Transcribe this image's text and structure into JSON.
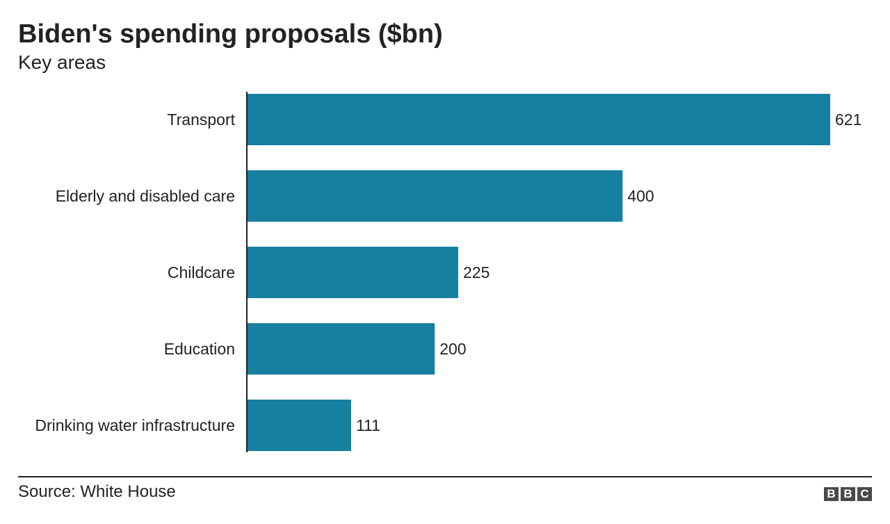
{
  "header": {
    "title": "Biden's spending proposals ($bn)",
    "subtitle": "Key areas"
  },
  "footer": {
    "source": "Source: White House",
    "logo_letters": [
      "B",
      "B",
      "C"
    ]
  },
  "colors": {
    "bar": "#1780a1",
    "text": "#222222",
    "axis": "#222222"
  },
  "chart_data": {
    "type": "bar",
    "orientation": "horizontal",
    "title": "Biden's spending proposals ($bn)",
    "subtitle": "Key areas",
    "categories": [
      "Transport",
      "Elderly and disabled care",
      "Childcare",
      "Education",
      "Drinking water infrastructure"
    ],
    "values": [
      621,
      400,
      225,
      200,
      111
    ],
    "data_labels": [
      "621",
      "400",
      "225",
      "200",
      "111"
    ],
    "xlim": [
      0,
      621
    ],
    "grid": false,
    "legend": "none",
    "xlabel": "",
    "ylabel": ""
  }
}
